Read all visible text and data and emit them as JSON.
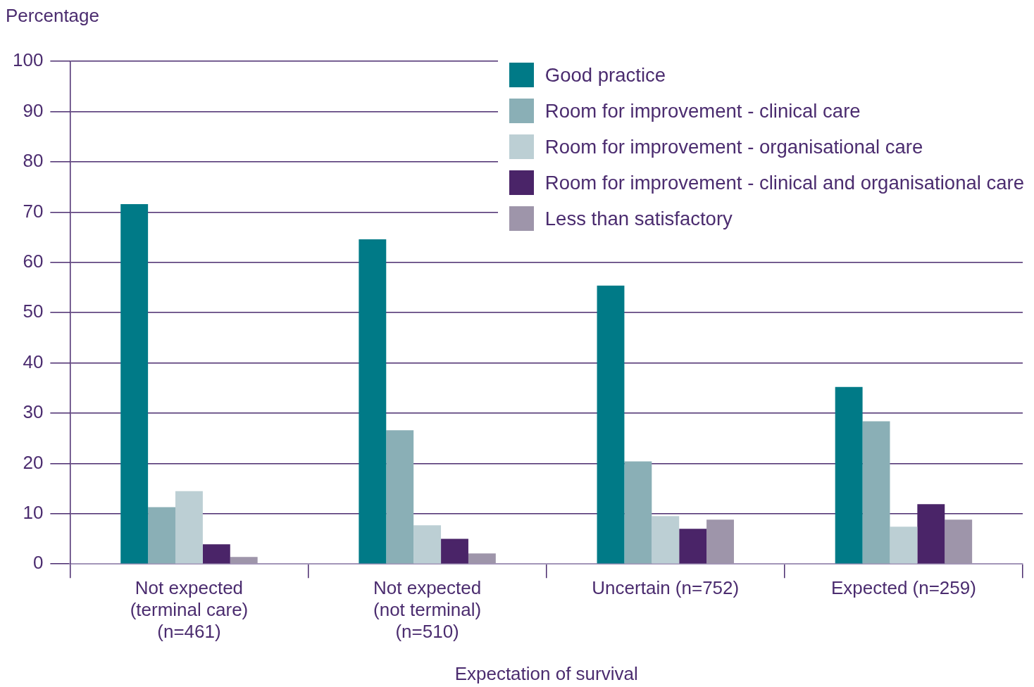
{
  "chart_data": {
    "type": "bar",
    "ylabel": "Percentage",
    "xlabel": "Expectation of survival",
    "categories": [
      "Not expected (terminal care) (n=461)",
      "Not expected (not terminal) (n=510)",
      "Uncertain (n=752)",
      "Expected (n=259)"
    ],
    "series": [
      {
        "name": "Good practice",
        "color": "#007a87",
        "values": [
          71.6,
          64.6,
          55.4,
          35.2
        ]
      },
      {
        "name": "Room for improvement - clinical care",
        "color": "#8aafb6",
        "values": [
          11.3,
          26.6,
          20.4,
          28.4
        ]
      },
      {
        "name": "Room for improvement - organisational care",
        "color": "#bccfd4",
        "values": [
          14.5,
          7.7,
          9.5,
          7.4
        ]
      },
      {
        "name": "Room for improvement - clinical and organisational care",
        "color": "#4a2468",
        "values": [
          3.9,
          5.0,
          7.0,
          11.9
        ]
      },
      {
        "name": "Less than satisfactory",
        "color": "#9e95aa",
        "values": [
          1.4,
          2.1,
          8.8,
          8.8
        ]
      }
    ],
    "ylim": [
      0,
      100
    ],
    "yticks": [
      0,
      10,
      20,
      30,
      40,
      50,
      60,
      70,
      80,
      90,
      100
    ],
    "grid": "y",
    "legend": "top right"
  }
}
